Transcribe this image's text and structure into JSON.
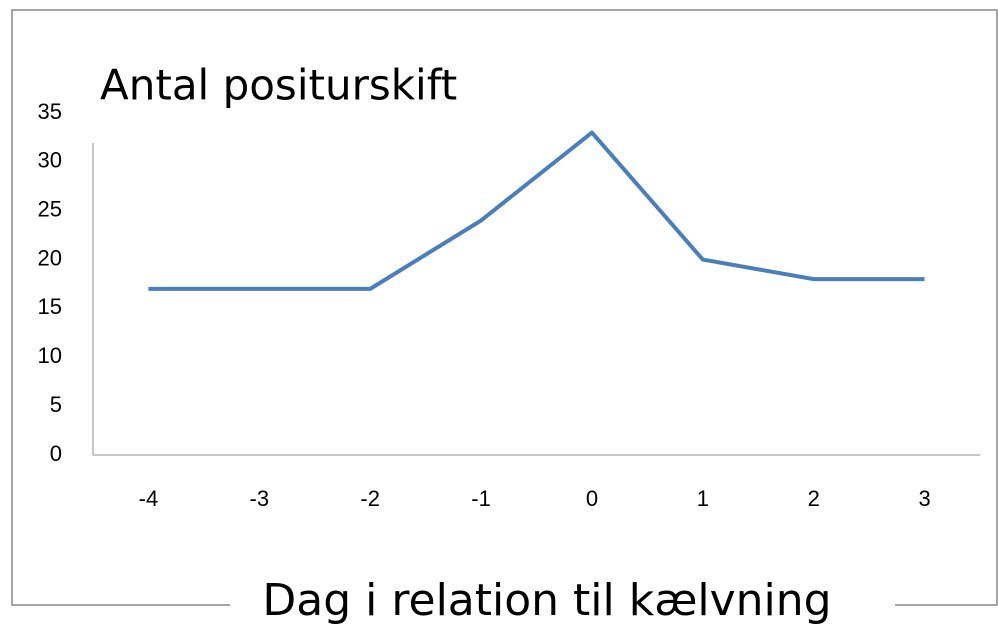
{
  "chart_data": {
    "type": "line",
    "title": "Antal positurskift",
    "x_label": "Dag i relation til kælvning",
    "x": [
      -4,
      -3,
      -2,
      -1,
      0,
      1,
      2,
      3
    ],
    "xlim": [
      -4.5,
      3.5
    ],
    "series": [
      {
        "name": null,
        "color": "#4a7ebb",
        "values": [
          17,
          17,
          17,
          24,
          33,
          20,
          18,
          18
        ]
      }
    ],
    "ylim": [
      0,
      35
    ],
    "yticks": [
      0,
      5,
      10,
      15,
      20,
      25,
      30,
      35
    ],
    "grid": false
  }
}
